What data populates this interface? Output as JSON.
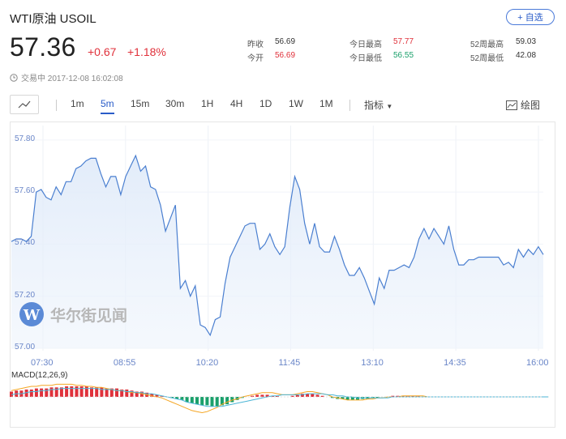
{
  "header": {
    "title": "WTI原油  USOIL",
    "follow_label": "+ 自选",
    "price": "57.36",
    "change": "+0.67",
    "change_pct": "+1.18%",
    "status": "交易中 2017-12-08 16:02:08"
  },
  "stats": {
    "prev_close_label": "昨收",
    "prev_close": "56.69",
    "open_label": "今开",
    "open": "56.69",
    "high_label": "今日最高",
    "high": "57.77",
    "low_label": "今日最低",
    "low": "56.55",
    "w52_high_label": "52周最高",
    "w52_high": "59.03",
    "w52_low_label": "52周最低",
    "w52_low": "42.08"
  },
  "toolbar": {
    "timeframes": [
      "1m",
      "5m",
      "15m",
      "30m",
      "1H",
      "4H",
      "1D",
      "1W",
      "1M"
    ],
    "active": "5m",
    "indicator_label": "指标",
    "draw_label": "绘图"
  },
  "watermark": "华尔街见闻",
  "colors": {
    "up": "#e0313b",
    "down": "#1aa06b",
    "line": "#4a7fd0",
    "accent": "#2a5cc8"
  },
  "chart_data": {
    "type": "area",
    "ylim": [
      57.0,
      57.84
    ],
    "yticks": [
      "57.80",
      "57.60",
      "57.40",
      "57.20",
      "57.00"
    ],
    "xticks": [
      "07:30",
      "08:55",
      "10:20",
      "11:45",
      "13:10",
      "14:35",
      "16:00"
    ],
    "values": [
      57.41,
      57.42,
      57.42,
      57.41,
      57.43,
      57.6,
      57.61,
      57.58,
      57.57,
      57.62,
      57.59,
      57.64,
      57.64,
      57.69,
      57.7,
      57.72,
      57.73,
      57.73,
      57.67,
      57.62,
      57.66,
      57.66,
      57.59,
      57.66,
      57.7,
      57.74,
      57.68,
      57.7,
      57.62,
      57.61,
      57.55,
      57.45,
      57.5,
      57.55,
      57.23,
      57.26,
      57.2,
      57.24,
      57.09,
      57.08,
      57.05,
      57.11,
      57.12,
      57.25,
      57.35,
      57.39,
      57.43,
      57.47,
      57.48,
      57.48,
      57.38,
      57.4,
      57.44,
      57.39,
      57.36,
      57.39,
      57.54,
      57.66,
      57.61,
      57.48,
      57.4,
      57.48,
      57.39,
      57.37,
      57.37,
      57.43,
      57.38,
      57.32,
      57.28,
      57.28,
      57.31,
      57.27,
      57.22,
      57.17,
      57.27,
      57.23,
      57.3,
      57.3,
      57.31,
      57.32,
      57.31,
      57.35,
      57.42,
      57.46,
      57.42,
      57.46,
      57.43,
      57.4,
      57.47,
      57.38,
      57.32,
      57.32,
      57.34,
      57.34,
      57.35,
      57.35,
      57.35,
      57.35,
      57.35,
      57.32,
      57.33,
      57.31,
      57.38,
      57.35,
      57.38,
      57.36,
      57.39,
      57.36
    ],
    "macd": {
      "label": "MACD(12,26,9)",
      "histogram": [
        5,
        6,
        6,
        7,
        7,
        8,
        8,
        8,
        9,
        9,
        9,
        10,
        10,
        10,
        10,
        10,
        9,
        9,
        9,
        8,
        8,
        8,
        7,
        7,
        6,
        5,
        5,
        4,
        3,
        2,
        1,
        0,
        -1,
        -2,
        -3,
        -5,
        -6,
        -7,
        -8,
        -8,
        -9,
        -9,
        -8,
        -7,
        -5,
        -3,
        -1,
        0,
        1,
        2,
        2,
        2,
        1,
        1,
        0,
        0,
        1,
        2,
        3,
        3,
        3,
        2,
        1,
        0,
        -1,
        -2,
        -2,
        -3,
        -3,
        -3,
        -2,
        -2,
        -1,
        -1,
        0,
        0,
        1,
        1,
        1,
        1,
        1,
        1,
        0,
        0,
        0,
        0,
        0,
        0,
        0,
        0,
        0,
        0,
        0,
        0,
        0,
        0,
        0,
        0,
        0,
        0,
        0,
        0,
        0,
        0,
        0,
        0,
        0
      ],
      "dif": [
        6,
        7,
        8,
        9,
        10,
        10,
        11,
        11,
        11,
        12,
        12,
        12,
        12,
        11,
        11,
        10,
        10,
        9,
        9,
        8,
        7,
        6,
        6,
        5,
        4,
        4,
        3,
        2,
        1,
        0,
        -1,
        -3,
        -5,
        -7,
        -9,
        -11,
        -13,
        -14,
        -15,
        -14,
        -12,
        -10,
        -7,
        -5,
        -3,
        -2,
        0,
        1,
        2,
        3,
        4,
        4,
        4,
        3,
        2,
        2,
        2,
        3,
        4,
        5,
        5,
        4,
        3,
        2,
        0,
        -1,
        -2,
        -3,
        -3,
        -3,
        -3,
        -2,
        -2,
        -1,
        -1,
        0,
        0,
        0,
        1,
        1,
        1,
        1,
        1,
        0,
        0,
        0,
        0,
        0,
        0,
        0,
        0,
        0,
        0,
        0,
        0,
        0,
        0,
        0,
        0,
        0,
        0,
        0,
        0,
        0,
        0,
        0,
        0,
        0
      ],
      "dea": [
        2,
        3,
        3,
        4,
        5,
        5,
        6,
        6,
        7,
        7,
        8,
        8,
        8,
        8,
        8,
        8,
        8,
        8,
        7,
        7,
        7,
        6,
        6,
        5,
        5,
        4,
        4,
        3,
        3,
        2,
        1,
        0,
        -1,
        -2,
        -3,
        -5,
        -6,
        -7,
        -8,
        -9,
        -9,
        -9,
        -9,
        -8,
        -7,
        -6,
        -5,
        -4,
        -3,
        -2,
        -1,
        0,
        1,
        1,
        2,
        2,
        2,
        2,
        2,
        3,
        3,
        3,
        3,
        2,
        2,
        1,
        1,
        0,
        0,
        -1,
        -1,
        -1,
        -1,
        -1,
        -1,
        -1,
        0,
        0,
        0,
        0,
        0,
        0,
        0,
        0,
        0,
        0,
        0,
        0,
        0,
        0,
        0,
        0,
        0,
        0,
        0,
        0,
        0,
        0,
        0,
        0,
        0,
        0,
        0,
        0,
        0,
        0,
        0,
        0
      ]
    }
  }
}
